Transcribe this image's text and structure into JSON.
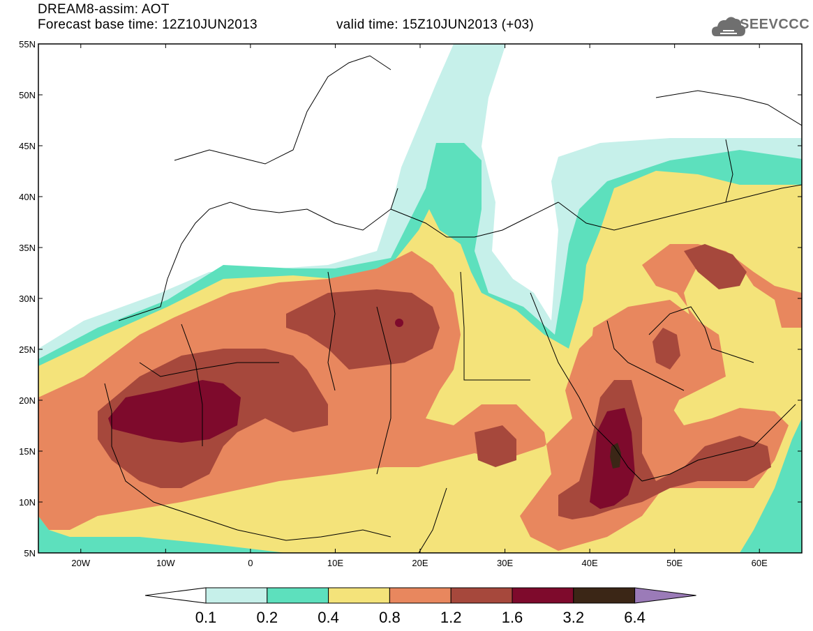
{
  "header": {
    "title_line1": "DREAM8-assim: AOT",
    "title_line2": "Forecast base time: 12Z10JUN2013",
    "valid_time": "valid time: 15Z10JUN2013 (+03)",
    "logo_text": "SEEVCCC"
  },
  "map": {
    "lon_range": [
      -25,
      65
    ],
    "lat_range": [
      5,
      55
    ],
    "lat_ticks": [
      "55N",
      "50N",
      "45N",
      "40N",
      "35N",
      "30N",
      "25N",
      "20N",
      "15N",
      "10N",
      "5N"
    ],
    "lon_ticks": [
      "20W",
      "10W",
      "0",
      "10E",
      "20E",
      "30E",
      "40E",
      "50E",
      "60E"
    ]
  },
  "colorbar": {
    "levels": [
      "0.1",
      "0.2",
      "0.4",
      "0.8",
      "1.2",
      "1.6",
      "3.2",
      "6.4"
    ],
    "colors": [
      "#c6f0ea",
      "#5de0bd",
      "#f4e37a",
      "#e8875e",
      "#a6483c",
      "#7e0a2c",
      "#3b2616",
      "#9b7bb8"
    ],
    "under_color": "#ffffff"
  }
}
